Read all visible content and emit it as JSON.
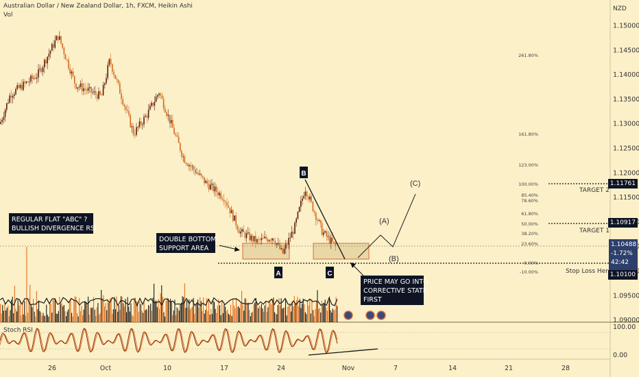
{
  "header": {
    "title": "Australian Dollar / New Zealand Dollar, 1h, FXCM, Heikin Ashi",
    "vol_label": "Vol"
  },
  "price_axis": {
    "currency": "NZD",
    "ticks": [
      "1.15000",
      "1.14500",
      "1.14000",
      "1.13500",
      "1.13000",
      "1.12500",
      "1.12000",
      "1.11500",
      "1.11000",
      "1.10500",
      "1.10000",
      "1.09500",
      "1.09000"
    ],
    "badges": {
      "target2": "1.11761",
      "target1": "1.10917",
      "last_price": "1.10488",
      "change": "-1.72%",
      "countdown": "42:42",
      "stop": "1.10100"
    }
  },
  "rsi_panel": {
    "label": "Stoch RSI",
    "ticks": [
      "100.00",
      "0.00"
    ]
  },
  "time_axis": {
    "labels": [
      "26",
      "Oct",
      "10",
      "17",
      "24",
      "Nov",
      "7",
      "14",
      "21",
      "28"
    ]
  },
  "fib_levels": [
    "261.80%",
    "161.80%",
    "123.00%",
    "100.00%",
    "85.40%",
    "78.60%",
    "61.80%",
    "50.00%",
    "38.20%",
    "23.60%",
    "0.00%",
    "-10.00%"
  ],
  "annotations": {
    "regular_flat_line1": "REGULAR FLAT \"ABC\" ?",
    "regular_flat_line2": "BULLISH DIVERGENCE RSI",
    "double_bottom_line1": "DOUBLE BOTTOM",
    "double_bottom_line2": "SUPPORT AREA",
    "price_may_line1": "PRICE MAY GO INTO",
    "price_may_line2": "CORRECTIVE STATE",
    "price_may_line3": "FIRST",
    "wave_a": "A",
    "wave_b": "B",
    "wave_c": "C",
    "proj_a": "(A)",
    "proj_b": "(B)",
    "proj_c": "(C)",
    "target2_label": "TARGET 2",
    "target1_label": "TARGET 1",
    "stop_label": "Stop Loss Here"
  },
  "colors": {
    "background": "#fbf0c8",
    "candle_up": "#5a1a0a",
    "candle_down": "#d2691e",
    "volume_up": "#1a1a1a",
    "volume_down": "#e07020",
    "rsi_line": "#8b2500",
    "support_box_fill": "#e9d7a6",
    "support_box_border": "#d96a3a",
    "badge_dark": "#0e1424"
  },
  "chart_data": {
    "type": "candlestick",
    "title": "Australian Dollar / New Zealand Dollar, 1h, FXCM, Heikin Ashi",
    "ylabel": "NZD",
    "ylim": [
      1.0875,
      1.1525
    ],
    "x_labels": [
      "26",
      "Oct",
      "10",
      "17",
      "24",
      "Nov",
      "7",
      "14",
      "21",
      "28"
    ],
    "path_keypoints": [
      {
        "x": "Sep 19",
        "price": 1.13
      },
      {
        "x": "Sep 21",
        "price": 1.136
      },
      {
        "x": "Sep 25",
        "price": 1.14
      },
      {
        "x": "Sep 27",
        "price": 1.148
      },
      {
        "x": "Sep 29",
        "price": 1.138
      },
      {
        "x": "Oct 1",
        "price": 1.1355
      },
      {
        "x": "Oct 3",
        "price": 1.143
      },
      {
        "x": "Oct 6",
        "price": 1.128
      },
      {
        "x": "Oct 8",
        "price": 1.132
      },
      {
        "x": "Oct 10",
        "price": 1.1365
      },
      {
        "x": "Oct 12",
        "price": 1.123
      },
      {
        "x": "Oct 15",
        "price": 1.118
      },
      {
        "x": "Oct 17",
        "price": 1.115
      },
      {
        "x": "Oct 19",
        "price": 1.108
      },
      {
        "x": "Oct 21",
        "price": 1.106
      },
      {
        "x": "Oct 23",
        "price": 1.107
      },
      {
        "x": "Oct 24",
        "price": 1.1035
      },
      {
        "x": "Oct 26",
        "price": 1.109
      },
      {
        "x": "Oct 27",
        "price": 1.117
      },
      {
        "x": "Oct 29",
        "price": 1.108
      },
      {
        "x": "Oct 30",
        "price": 1.1048
      }
    ],
    "last_price": 1.10488,
    "target_1": 1.10917,
    "target_2": 1.11761,
    "stop_loss": 1.101,
    "rsi_ylim": [
      0,
      100
    ]
  }
}
